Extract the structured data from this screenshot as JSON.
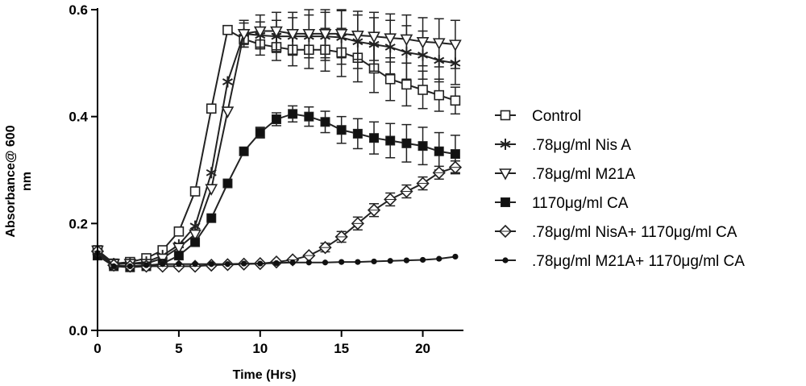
{
  "chart_data": {
    "type": "line",
    "title": "",
    "xlabel": "Time (Hrs)",
    "ylabel_lines": [
      "Absorbance@ 600",
      "nm"
    ],
    "xlim": [
      0,
      22.5
    ],
    "ylim": [
      0,
      0.6
    ],
    "xticks": [
      0,
      5,
      10,
      15,
      20
    ],
    "xtick_labels": [
      "0",
      "5",
      "10",
      "15",
      "20"
    ],
    "yticks": [
      0,
      0.2,
      0.4,
      0.6
    ],
    "ytick_labels": [
      "0.0",
      "0.2",
      "0.4",
      "0.6"
    ],
    "legend_position": "right",
    "x": [
      0,
      1,
      2,
      3,
      4,
      5,
      6,
      7,
      8,
      9,
      10,
      11,
      12,
      13,
      14,
      15,
      16,
      17,
      18,
      19,
      20,
      21,
      22
    ],
    "series": [
      {
        "name": "Control",
        "marker": "square-open",
        "values": [
          0.15,
          0.125,
          0.128,
          0.135,
          0.15,
          0.185,
          0.26,
          0.415,
          0.562,
          0.545,
          0.535,
          0.53,
          0.525,
          0.525,
          0.525,
          0.52,
          0.51,
          0.49,
          0.47,
          0.46,
          0.45,
          0.44,
          0.43
        ],
        "errors": [
          0,
          0,
          0,
          0,
          0,
          0,
          0,
          0,
          0,
          0.015,
          0.02,
          0.025,
          0.03,
          0.035,
          0.04,
          0.045,
          0.045,
          0.045,
          0.04,
          0.04,
          0.035,
          0.03,
          0.025
        ]
      },
      {
        "name": ".78μg/ml Nis A",
        "marker": "asterisk",
        "values": [
          0.15,
          0.125,
          0.125,
          0.128,
          0.14,
          0.16,
          0.195,
          0.295,
          0.465,
          0.555,
          0.552,
          0.55,
          0.55,
          0.55,
          0.55,
          0.548,
          0.54,
          0.535,
          0.53,
          0.52,
          0.515,
          0.505,
          0.5
        ],
        "errors": [
          0,
          0,
          0,
          0,
          0,
          0,
          0,
          0,
          0,
          0.02,
          0.025,
          0.03,
          0.035,
          0.04,
          0.045,
          0.05,
          0.05,
          0.05,
          0.05,
          0.05,
          0.045,
          0.04,
          0.04
        ]
      },
      {
        "name": ".78μg/ml M21A",
        "marker": "triangle-down-open",
        "values": [
          0.15,
          0.125,
          0.125,
          0.125,
          0.135,
          0.155,
          0.18,
          0.265,
          0.41,
          0.555,
          0.56,
          0.56,
          0.555,
          0.555,
          0.555,
          0.555,
          0.552,
          0.55,
          0.547,
          0.545,
          0.54,
          0.538,
          0.535
        ],
        "errors": [
          0,
          0,
          0,
          0,
          0,
          0,
          0,
          0,
          0,
          0.025,
          0.03,
          0.035,
          0.04,
          0.045,
          0.045,
          0.045,
          0.045,
          0.045,
          0.045,
          0.045,
          0.045,
          0.045,
          0.045
        ]
      },
      {
        "name": "1170μg/ml CA",
        "marker": "square-filled",
        "values": [
          0.14,
          0.12,
          0.118,
          0.12,
          0.125,
          0.14,
          0.165,
          0.21,
          0.275,
          0.335,
          0.37,
          0.395,
          0.405,
          0.4,
          0.39,
          0.375,
          0.368,
          0.36,
          0.355,
          0.35,
          0.345,
          0.335,
          0.33
        ],
        "errors": [
          0,
          0,
          0,
          0,
          0,
          0,
          0,
          0,
          0,
          0,
          0.01,
          0.012,
          0.015,
          0.018,
          0.02,
          0.025,
          0.028,
          0.03,
          0.032,
          0.035,
          0.035,
          0.035,
          0.035
        ]
      },
      {
        "name": ".78μg/ml NisA+ 1170μg/ml CA",
        "marker": "diamond-open",
        "values": [
          0.148,
          0.122,
          0.12,
          0.12,
          0.12,
          0.12,
          0.12,
          0.122,
          0.123,
          0.124,
          0.125,
          0.128,
          0.132,
          0.14,
          0.155,
          0.175,
          0.2,
          0.225,
          0.245,
          0.26,
          0.275,
          0.295,
          0.305
        ],
        "errors": [
          0,
          0,
          0,
          0,
          0,
          0,
          0,
          0,
          0,
          0,
          0,
          0,
          0,
          0,
          0.008,
          0.01,
          0.012,
          0.012,
          0.012,
          0.012,
          0.012,
          0.012,
          0.012
        ]
      },
      {
        "name": ".78μg/ml M21A+ 1170μg/ml CA",
        "marker": "circle-filled",
        "values": [
          0.145,
          0.12,
          0.12,
          0.122,
          0.124,
          0.124,
          0.124,
          0.124,
          0.124,
          0.125,
          0.125,
          0.126,
          0.127,
          0.127,
          0.127,
          0.128,
          0.128,
          0.129,
          0.13,
          0.131,
          0.132,
          0.134,
          0.138
        ],
        "errors": [
          0,
          0,
          0,
          0,
          0,
          0,
          0,
          0,
          0,
          0,
          0,
          0,
          0,
          0,
          0,
          0,
          0,
          0,
          0,
          0,
          0,
          0,
          0
        ]
      }
    ]
  }
}
